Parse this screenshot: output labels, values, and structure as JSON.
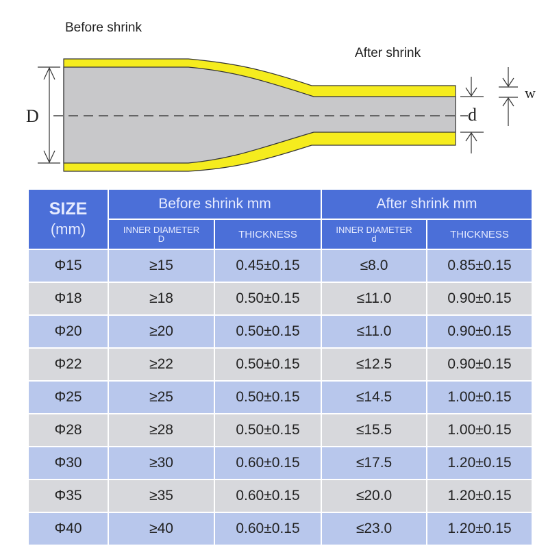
{
  "diagram": {
    "before_label": "Before shrink",
    "after_label": "After shrink",
    "outer_diameter_label": "D",
    "inner_diameter_label": "d",
    "wall_label": "w",
    "colors": {
      "tube_wall": "#f5ec1e",
      "tube_inner": "#c8c8ca"
    }
  },
  "table": {
    "size_header": "SIZE",
    "size_unit": "(mm)",
    "before_header": "Before  shrink  mm",
    "after_header": "After shrink   mm",
    "sub_headers": [
      "INNER DIAMETER",
      "D",
      "THICKNESS",
      "INNER DIAMETER",
      "d",
      "THICKNESS"
    ],
    "rows": [
      [
        "Φ15",
        "≥15",
        "0.45±0.15",
        "≤8.0",
        "0.85±0.15"
      ],
      [
        "Φ18",
        "≥18",
        "0.50±0.15",
        "≤11.0",
        "0.90±0.15"
      ],
      [
        "Φ20",
        "≥20",
        "0.50±0.15",
        "≤11.0",
        "0.90±0.15"
      ],
      [
        "Φ22",
        "≥22",
        "0.50±0.15",
        "≤12.5",
        "0.90±0.15"
      ],
      [
        "Φ25",
        "≥25",
        "0.50±0.15",
        "≤14.5",
        "1.00±0.15"
      ],
      [
        "Φ28",
        "≥28",
        "0.50±0.15",
        "≤15.5",
        "1.00±0.15"
      ],
      [
        "Φ30",
        "≥30",
        "0.60±0.15",
        "≤17.5",
        "1.20±0.15"
      ],
      [
        "Φ35",
        "≥35",
        "0.60±0.15",
        "≤20.0",
        "1.20±0.15"
      ],
      [
        "Φ40",
        "≥40",
        "0.60±0.15",
        "≤23.0",
        "1.20±0.15"
      ]
    ],
    "colors": {
      "header": "#4b6fd8",
      "row_odd": "#b8c7ec",
      "row_even": "#d7d8dc"
    }
  }
}
